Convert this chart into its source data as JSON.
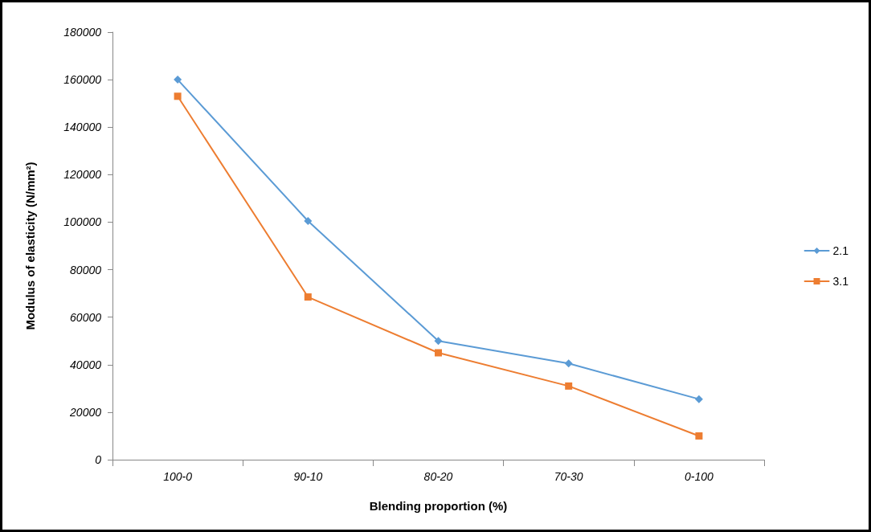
{
  "chart_data": {
    "type": "line",
    "xlabel": "Blending proportion (%)",
    "ylabel": "Modulus of elasticity (N/mm²)",
    "categories": [
      "100-0",
      "90-10",
      "80-20",
      "70-30",
      "0-100"
    ],
    "series": [
      {
        "name": "2.1",
        "color": "#5b9bd5",
        "marker": "diamond",
        "values": [
          160000,
          100500,
          50000,
          40500,
          25500
        ]
      },
      {
        "name": "3.1",
        "color": "#ed7d31",
        "marker": "square",
        "values": [
          153000,
          68500,
          45000,
          31000,
          10000
        ]
      }
    ],
    "ylim": [
      0,
      180000
    ],
    "yticks": [
      0,
      20000,
      40000,
      60000,
      80000,
      100000,
      120000,
      140000,
      160000,
      180000
    ],
    "grid": false,
    "legend": "right",
    "line_style": "solid"
  }
}
